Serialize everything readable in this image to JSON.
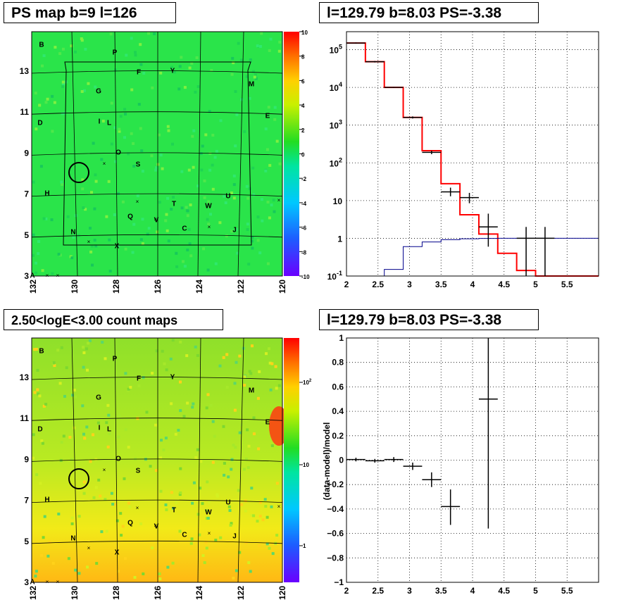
{
  "panels": {
    "psmap_title": "PS map b=9 l=126",
    "spectrum_title": "l=129.79 b=8.03 PS=-3.38",
    "countmap_title": "2.50<logE<3.00 count maps",
    "residual_title": "l=129.79 b=8.03 PS=-3.38"
  },
  "chart_data": [
    {
      "type": "heatmap",
      "name": "ps-map",
      "title": "PS map b=9 l=126",
      "xticks": [
        "132",
        "130",
        "128",
        "126",
        "124",
        "122",
        "120"
      ],
      "yticks": [
        "3",
        "5",
        "7",
        "9",
        "11",
        "13"
      ],
      "colorbar_ticks": [
        "10",
        "8",
        "6",
        "4",
        "2",
        "0",
        "-2",
        "-4",
        "-6",
        "-8",
        "-10"
      ],
      "colorbar_range": [
        -10,
        10
      ],
      "source_labels": [
        "B",
        "P",
        "F",
        "Y",
        "M",
        "G",
        "E",
        "D",
        "I",
        "L",
        "O",
        "S",
        "H",
        "U",
        "T",
        "W",
        "Q",
        "V",
        "C",
        "N",
        "J",
        "X",
        "A"
      ],
      "circle": {
        "l": 129.79,
        "b": 8.03
      }
    },
    {
      "type": "line",
      "name": "spectrum",
      "title": "l=129.79 b=8.03 PS=-3.38",
      "xlim": [
        2,
        6
      ],
      "ylog": true,
      "ylim": [
        0.1,
        300000
      ],
      "xticks": [
        "2",
        "2.5",
        "3",
        "3.5",
        "4",
        "4.5",
        "5",
        "5.5"
      ],
      "yticks": [
        "10^-1",
        "1",
        "10",
        "10^2",
        "10^3",
        "10^4",
        "10^5"
      ],
      "grid": true,
      "series": [
        {
          "style": "step",
          "color": "#ff0000",
          "edges": [
            2.0,
            2.3,
            2.6,
            2.9,
            3.2,
            3.5,
            3.8,
            4.1,
            4.4,
            4.7,
            5.0,
            5.3,
            6.0
          ],
          "values": [
            150000,
            48000,
            10000,
            1600,
            210,
            28,
            4.2,
            1.3,
            0.4,
            0.14,
            0.1,
            0.1
          ]
        },
        {
          "style": "step",
          "color": "#00008b",
          "edges": [
            2.6,
            2.9,
            3.2,
            3.5,
            3.8,
            4.1,
            4.4,
            4.7,
            5.0,
            6.0
          ],
          "values": [
            0.15,
            0.6,
            0.8,
            0.92,
            0.97,
            0.99,
            1.0,
            1.0,
            1.0
          ]
        },
        {
          "style": "errorbars",
          "color": "#000000",
          "points": [
            {
              "x": 2.15,
              "y": 150000,
              "xerr": 0.15,
              "ylo": 145000,
              "yhi": 155000
            },
            {
              "x": 2.45,
              "y": 48000,
              "xerr": 0.15,
              "ylo": 46000,
              "yhi": 50000
            },
            {
              "x": 2.75,
              "y": 10000,
              "xerr": 0.15,
              "ylo": 9700,
              "yhi": 10300
            },
            {
              "x": 3.05,
              "y": 1600,
              "xerr": 0.15,
              "ylo": 1500,
              "yhi": 1700
            },
            {
              "x": 3.35,
              "y": 190,
              "xerr": 0.15,
              "ylo": 170,
              "yhi": 210
            },
            {
              "x": 3.65,
              "y": 17,
              "xerr": 0.15,
              "ylo": 13,
              "yhi": 22
            },
            {
              "x": 3.95,
              "y": 12,
              "xerr": 0.15,
              "ylo": 8.5,
              "yhi": 16
            },
            {
              "x": 4.25,
              "y": 2,
              "xerr": 0.15,
              "ylo": 0.6,
              "yhi": 4.5
            },
            {
              "x": 4.85,
              "y": 1,
              "xerr": 0.15,
              "ylo": 0.1,
              "yhi": 2
            },
            {
              "x": 5.15,
              "y": 1,
              "xerr": 0.15,
              "ylo": 0.1,
              "yhi": 2
            }
          ]
        }
      ]
    },
    {
      "type": "heatmap",
      "name": "count-map",
      "title": "2.50<logE<3.00 count maps",
      "xticks": [
        "132",
        "130",
        "128",
        "126",
        "124",
        "122",
        "120"
      ],
      "yticks": [
        "3",
        "5",
        "7",
        "9",
        "11",
        "13"
      ],
      "colorbar_log": true,
      "colorbar_ticks": [
        "10^2",
        "10",
        "1"
      ],
      "source_labels": [
        "B",
        "P",
        "F",
        "Y",
        "M",
        "G",
        "E",
        "D",
        "I",
        "L",
        "O",
        "S",
        "H",
        "U",
        "T",
        "W",
        "Q",
        "V",
        "C",
        "N",
        "J",
        "X",
        "A"
      ],
      "circle": {
        "l": 129.79,
        "b": 8.03
      }
    },
    {
      "type": "scatter",
      "name": "residuals",
      "title": "l=129.79 b=8.03 PS=-3.38",
      "ylabel": "(data-model)/model",
      "xlim": [
        2,
        6
      ],
      "ylim": [
        -1,
        1
      ],
      "xticks": [
        "2",
        "2.5",
        "3",
        "3.5",
        "4",
        "4.5",
        "5",
        "5.5"
      ],
      "yticks": [
        "1",
        "0.8",
        "0.6",
        "0.4",
        "0.2",
        "0",
        "-0.2",
        "-0.4",
        "-0.6",
        "-0.8",
        "-1"
      ],
      "grid": true,
      "points": [
        {
          "x": 2.15,
          "y": 0.005,
          "xerr": 0.15,
          "ylo": -0.01,
          "yhi": 0.02
        },
        {
          "x": 2.45,
          "y": -0.005,
          "xerr": 0.15,
          "ylo": -0.02,
          "yhi": 0.01
        },
        {
          "x": 2.75,
          "y": 0.005,
          "xerr": 0.15,
          "ylo": -0.015,
          "yhi": 0.025
        },
        {
          "x": 3.05,
          "y": -0.05,
          "xerr": 0.15,
          "ylo": -0.08,
          "yhi": -0.02
        },
        {
          "x": 3.35,
          "y": -0.16,
          "xerr": 0.15,
          "ylo": -0.22,
          "yhi": -0.1
        },
        {
          "x": 3.65,
          "y": -0.38,
          "xerr": 0.15,
          "ylo": -0.53,
          "yhi": -0.24
        },
        {
          "x": 4.25,
          "y": 0.5,
          "xerr": 0.15,
          "ylo": -0.56,
          "yhi": 1.0
        }
      ]
    }
  ]
}
